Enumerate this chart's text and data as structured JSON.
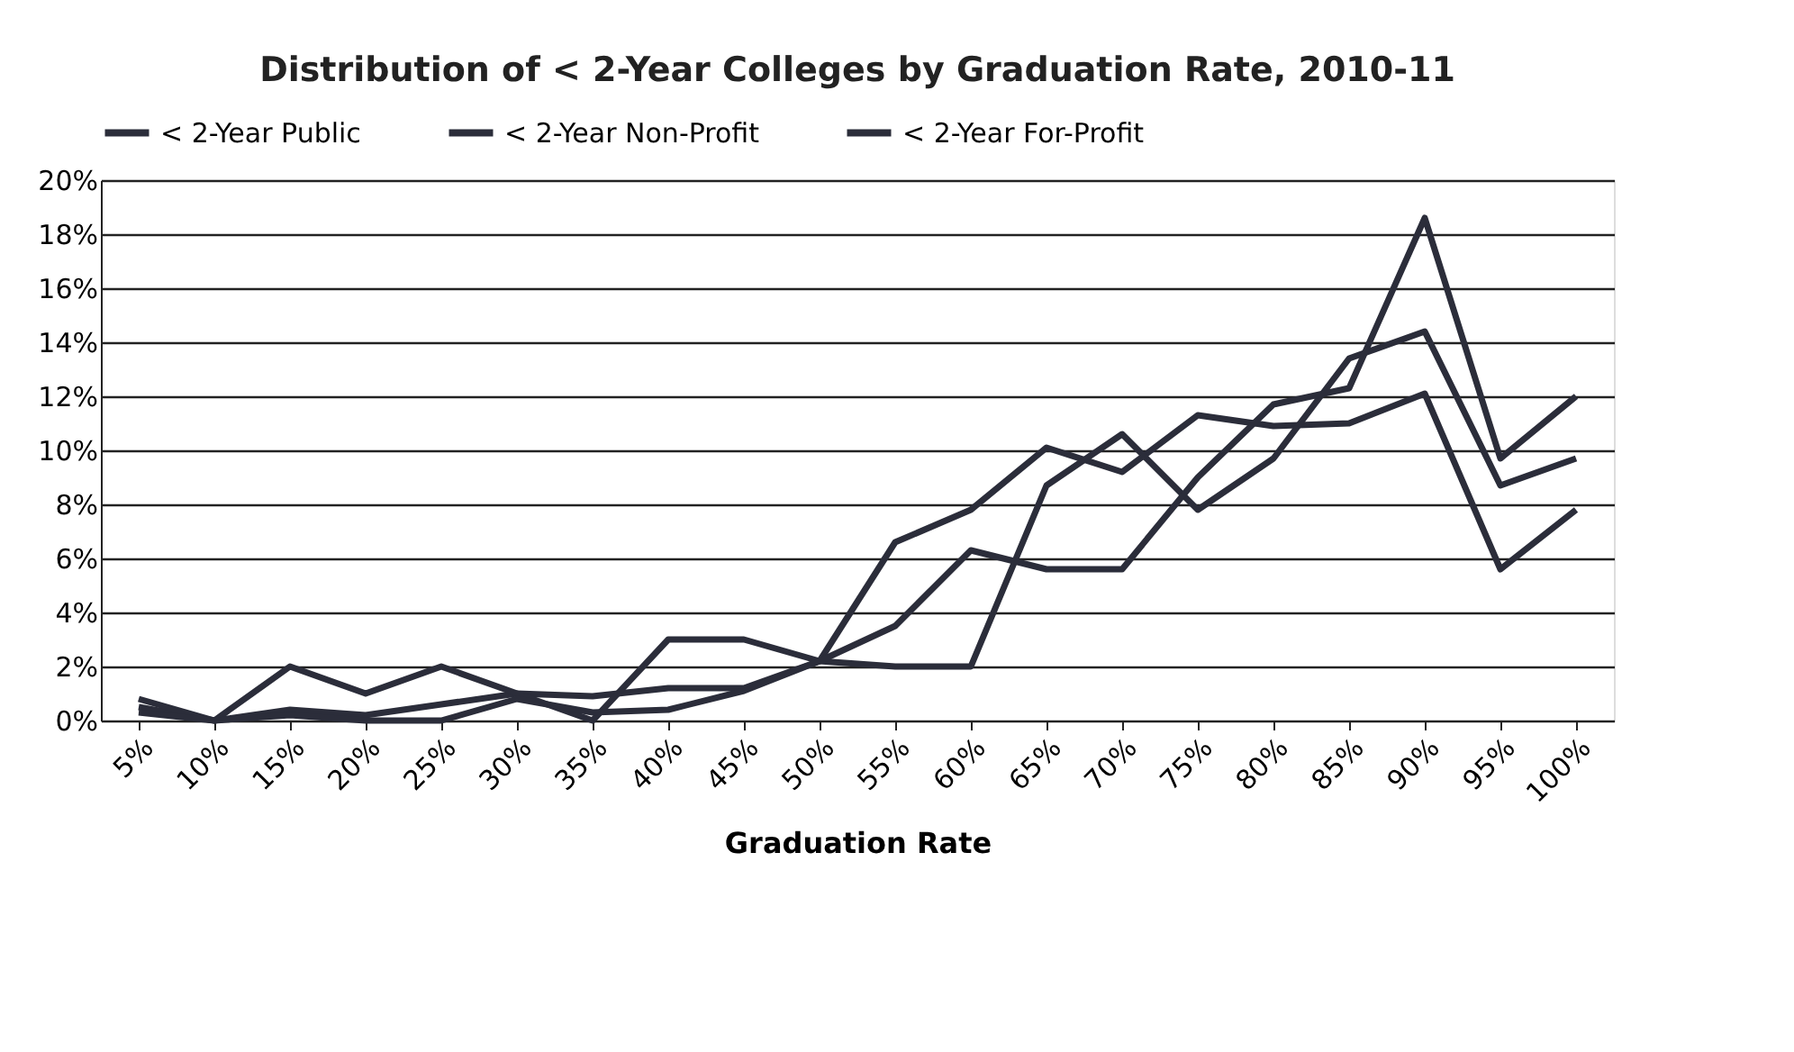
{
  "chart_data": {
    "type": "line",
    "title": "Distribution of < 2-Year Colleges by Graduation Rate, 2010-11",
    "xlabel": "Graduation Rate",
    "categories": [
      "5%",
      "10%",
      "15%",
      "20%",
      "25%",
      "30%",
      "35%",
      "40%",
      "45%",
      "50%",
      "55%",
      "60%",
      "65%",
      "70%",
      "75%",
      "80%",
      "85%",
      "90%",
      "95%",
      "100%"
    ],
    "series": [
      {
        "name": "< 2-Year Public",
        "color": "#2b2d3a",
        "values": [
          0.5,
          0,
          0.4,
          0.2,
          0.6,
          1.0,
          0.9,
          1.2,
          1.2,
          2.2,
          6.6,
          7.8,
          10.1,
          9.2,
          11.3,
          10.9,
          11.0,
          12.1,
          5.6,
          7.8
        ]
      },
      {
        "name": "< 2-Year Non-Profit",
        "color": "#2b2d3a",
        "values": [
          0.8,
          0,
          2.0,
          1.0,
          2.0,
          1.0,
          0,
          3.0,
          3.0,
          2.2,
          2.0,
          2.0,
          8.7,
          10.6,
          7.8,
          9.7,
          13.4,
          14.4,
          8.7,
          9.7
        ]
      },
      {
        "name": "< 2-Year For-Profit",
        "color": "#2b2d3a",
        "values": [
          0.3,
          0,
          0.2,
          0,
          0,
          0.8,
          0.3,
          0.4,
          1.1,
          2.2,
          3.5,
          6.3,
          5.6,
          5.6,
          9.0,
          11.7,
          12.3,
          18.6,
          9.7,
          12.0
        ]
      }
    ],
    "ylim": [
      0,
      20
    ],
    "yticks": [
      {
        "value": 0,
        "label": "0%"
      },
      {
        "value": 2,
        "label": "2%"
      },
      {
        "value": 4,
        "label": "4%"
      },
      {
        "value": 6,
        "label": "6%"
      },
      {
        "value": 8,
        "label": "8%"
      },
      {
        "value": 10,
        "label": "10%"
      },
      {
        "value": 12,
        "label": "12%"
      },
      {
        "value": 14,
        "label": "14%"
      },
      {
        "value": 16,
        "label": "16%"
      },
      {
        "value": 18,
        "label": "18%"
      },
      {
        "value": 20,
        "label": "20%"
      }
    ],
    "grid": "y",
    "legend": "top",
    "marker": "none",
    "line_style": "solid"
  }
}
